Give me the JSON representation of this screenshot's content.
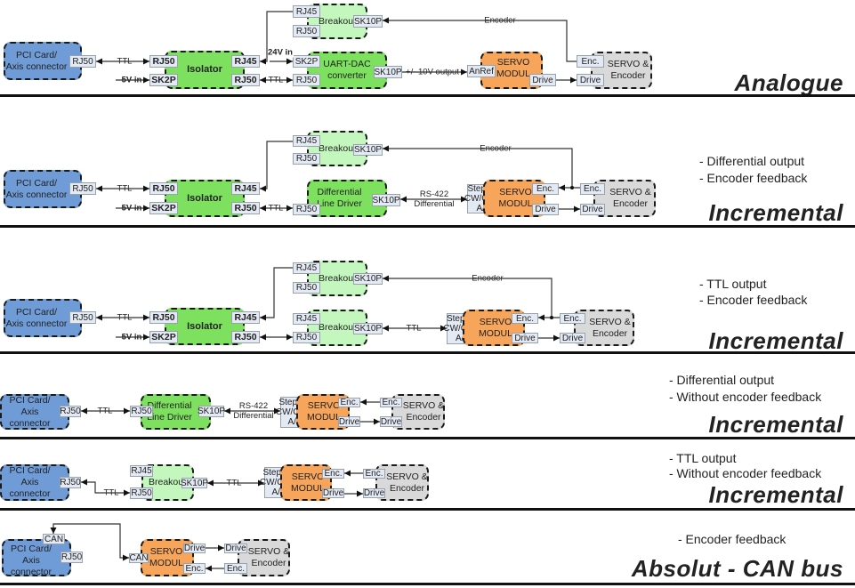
{
  "colors": {
    "pci": "#6f9bd6",
    "active": "#7de05f",
    "breakout": "#c3f7be",
    "servo": "#f6a55a",
    "motor": "#d9d9d9",
    "port": "#e4eaf4"
  },
  "sections": [
    {
      "title": "Analogue",
      "notes": [],
      "blocks": [
        "PCI Card/\nAxis connector",
        "Isolator",
        "Breakout",
        "UART-DAC\nconverter",
        "SERVO\nMODUL",
        "SERVO &\nEncoder"
      ],
      "ports": [
        "RJ50",
        "RJ50",
        "SK2P",
        "RJ45",
        "RJ50",
        "RJ45",
        "RJ50",
        "SK10P",
        "SK2P",
        "RJ50",
        "SK10P",
        "AnRef",
        "Drive",
        "Enc.",
        "Drive"
      ],
      "edge_labels": [
        "TTL",
        "5V in",
        "24V in",
        "TTL",
        "+/- 10V output",
        "Encoder"
      ]
    },
    {
      "title": "Incremental",
      "notes": [
        "- Differential output",
        "- Encoder feedback"
      ],
      "blocks": [
        "PCI Card/\nAxis connector",
        "Isolator",
        "Breakout",
        "Differential\nLine Driver",
        "SERVO\nMODUL",
        "SERVO &\nEncoder"
      ],
      "ports": [
        "RJ50",
        "RJ50",
        "SK2P",
        "RJ45",
        "RJ50",
        "RJ45",
        "RJ50",
        "SK10P",
        "RJ50",
        "SK10P",
        "Step/Dir\nCW/CCW\nA/B",
        "Enc.",
        "Drive",
        "Enc.",
        "Drive"
      ],
      "edge_labels": [
        "TTL",
        "5V in",
        "TTL",
        "RS-422\nDifferential",
        "Encoder"
      ]
    },
    {
      "title": "Incremental",
      "notes": [
        "- TTL output",
        "- Encoder feedback"
      ],
      "blocks": [
        "PCI Card/\nAxis connector",
        "Isolator",
        "Breakout",
        "Breakout",
        "SERVO\nMODUL",
        "SERVO &\nEncoder"
      ],
      "ports": [
        "RJ50",
        "RJ50",
        "SK2P",
        "RJ45",
        "RJ50",
        "RJ45",
        "RJ50",
        "SK10P",
        "RJ45",
        "RJ50",
        "SK10P",
        "Step/Dir\nCW/CCW\nA/B",
        "Enc.",
        "Drive",
        "Enc.",
        "Drive"
      ],
      "edge_labels": [
        "TTL",
        "5V in",
        "TTL",
        "Encoder"
      ]
    },
    {
      "title": "Incremental",
      "notes": [
        "- Differential output",
        "- Without encoder feedback"
      ],
      "blocks": [
        "PCI Card/\nAxis connector",
        "Differential\nLine Driver",
        "SERVO\nMODUL",
        "SERVO &\nEncoder"
      ],
      "ports": [
        "RJ50",
        "RJ50",
        "SK10P",
        "Step/Dir\nCW/CCW\nA/B",
        "Enc.",
        "Drive",
        "Enc.",
        "Drive"
      ],
      "edge_labels": [
        "TTL",
        "RS-422\nDifferential"
      ]
    },
    {
      "title": "Incremental",
      "notes": [
        "- TTL output",
        "- Without encoder feedback"
      ],
      "blocks": [
        "PCI Card/\nAxis connector",
        "Breakout",
        "SERVO\nMODUL",
        "SERVO &\nEncoder"
      ],
      "ports": [
        "RJ50",
        "RJ45",
        "RJ50",
        "SK10P",
        "Step/Dir\nCW/CCW\nA/B",
        "Enc.",
        "Drive",
        "Enc.",
        "Drive"
      ],
      "edge_labels": [
        "TTL",
        "TTL"
      ]
    },
    {
      "title": "Absolut - CAN bus",
      "notes": [
        "- Encoder feedback"
      ],
      "blocks": [
        "PCI Card/\nAxis connector",
        "SERVO\nMODUL",
        "SERVO &\nEncoder"
      ],
      "ports": [
        "CAN",
        "RJ50",
        "CAN",
        "Drive",
        "Enc.",
        "Drive",
        "Enc."
      ],
      "edge_labels": []
    }
  ]
}
